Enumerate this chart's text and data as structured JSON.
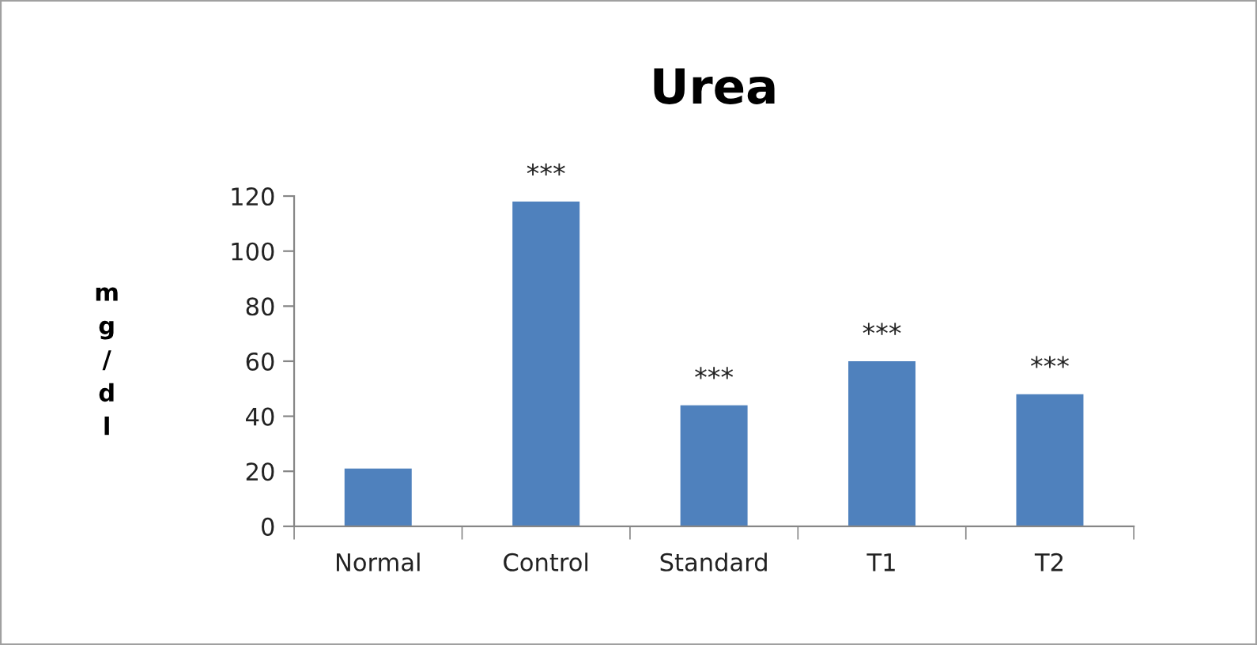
{
  "chart_data": {
    "type": "bar",
    "title": "Urea",
    "ylabel": "mg/dl",
    "categories": [
      "Normal",
      "Control",
      "Standard",
      "T1",
      "T2"
    ],
    "values": [
      21,
      118,
      44,
      60,
      48
    ],
    "color": "#4f81bd",
    "ylim": [
      0,
      120
    ],
    "yticks": [
      0,
      20,
      40,
      60,
      80,
      100,
      120
    ],
    "grid": false,
    "annotations": [
      {
        "text": "***",
        "x": "Control",
        "y": 118
      },
      {
        "text": "***",
        "x": "Standard",
        "y": 44
      },
      {
        "text": "***",
        "x": "T1",
        "y": 60
      },
      {
        "text": "***",
        "x": "T2",
        "y": 48
      }
    ]
  }
}
